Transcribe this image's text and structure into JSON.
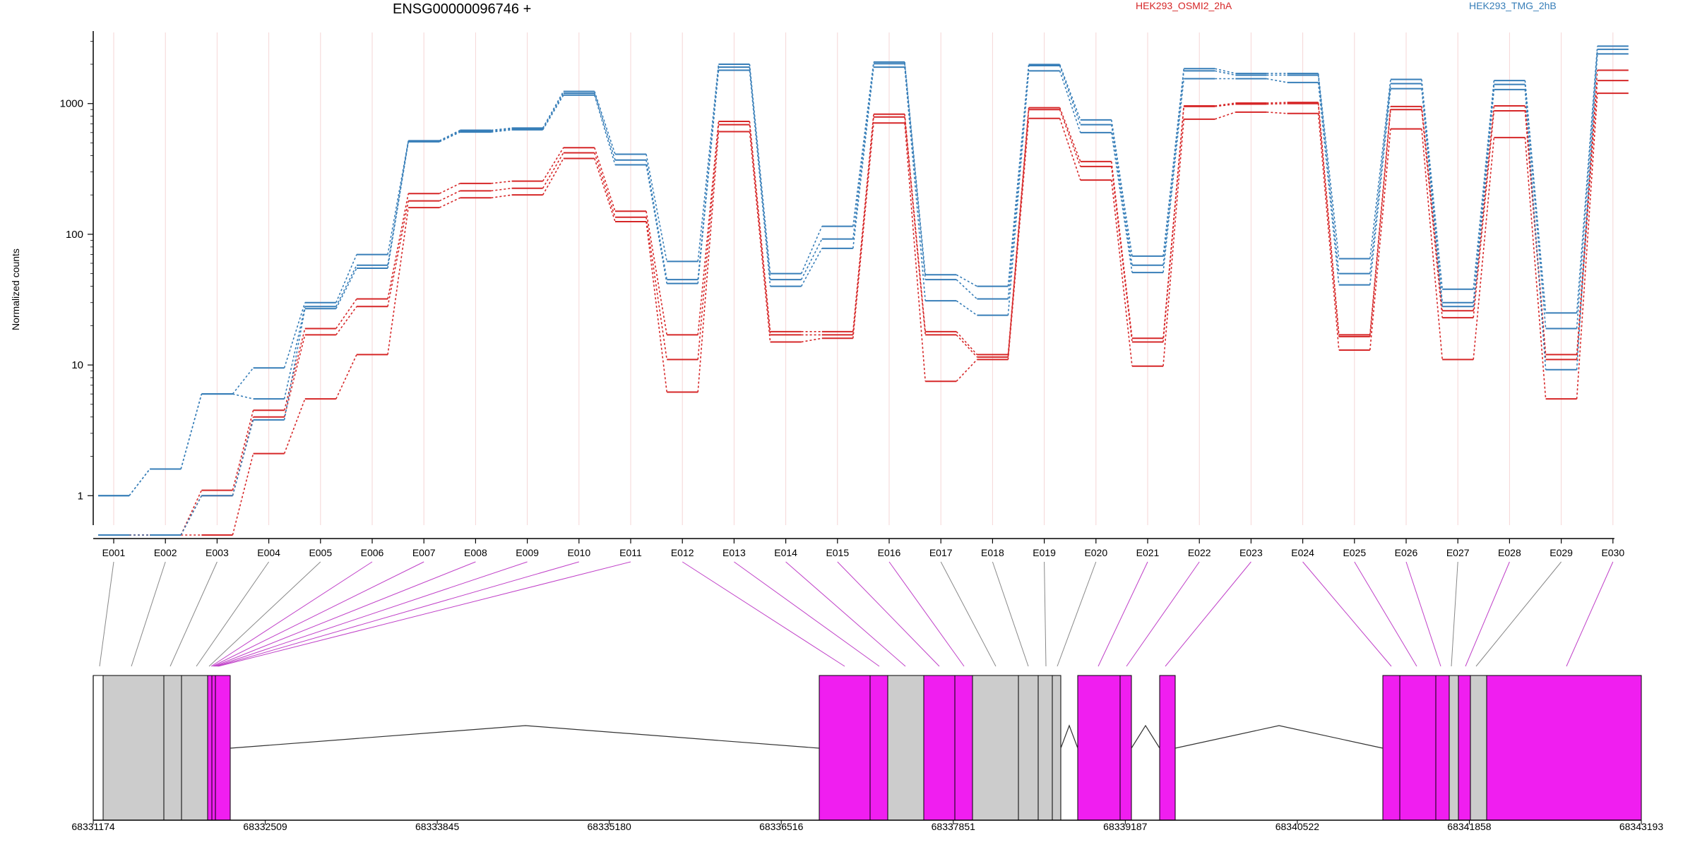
{
  "chart_data": {
    "type": "line",
    "title": "ENSG00000096746 +",
    "ylabel": "Normalized counts",
    "xlabel": "",
    "yscale": "log",
    "ylim": [
      0.5,
      3500
    ],
    "yticks": [
      "1",
      "10",
      "100",
      "1000"
    ],
    "categories": [
      "E001",
      "E002",
      "E003",
      "E004",
      "E005",
      "E006",
      "E007",
      "E008",
      "E009",
      "E010",
      "E011",
      "E012",
      "E013",
      "E014",
      "E015",
      "E016",
      "E017",
      "E018",
      "E019",
      "E020",
      "E021",
      "E022",
      "E023",
      "E024",
      "E025",
      "E026",
      "E027",
      "E028",
      "E029",
      "E030"
    ],
    "series": [
      {
        "name": "HEK293_OSMI2_2hA",
        "color": "#d62728",
        "values": [
          0.5,
          0.5,
          1.1,
          4.5,
          19,
          32,
          205,
          245,
          255,
          460,
          150,
          17,
          730,
          18,
          18,
          830,
          18,
          12,
          930,
          360,
          16,
          960,
          1010,
          1020,
          17,
          950,
          26,
          960,
          12,
          1800
        ]
      },
      {
        "name": "",
        "color": "#d62728",
        "values": [
          0.5,
          0.5,
          1.0,
          4.0,
          17,
          28,
          180,
          215,
          225,
          420,
          135,
          11,
          690,
          17,
          17,
          790,
          17,
          11.5,
          900,
          330,
          15,
          950,
          990,
          1000,
          16.5,
          900,
          23,
          880,
          11,
          1500
        ]
      },
      {
        "name": "",
        "color": "#d62728",
        "values": [
          0.5,
          0.5,
          0.5,
          2.1,
          5.5,
          12,
          160,
          190,
          200,
          380,
          125,
          6.2,
          610,
          15,
          16,
          710,
          7.5,
          11,
          770,
          260,
          9.8,
          760,
          860,
          840,
          13,
          640,
          11,
          550,
          5.5,
          1200
        ]
      },
      {
        "name": "HEK293_TMG_2hB",
        "color": "#377eb8",
        "values": [
          1,
          1.6,
          6,
          9.5,
          30,
          70,
          520,
          625,
          650,
          1240,
          410,
          62,
          2000,
          50,
          115,
          2080,
          49,
          40,
          1990,
          750,
          68,
          1850,
          1700,
          1700,
          65,
          1530,
          38,
          1500,
          25,
          2750
        ]
      },
      {
        "name": "",
        "color": "#377eb8",
        "values": [
          1,
          1.6,
          6,
          5.5,
          28,
          58,
          515,
          615,
          640,
          1200,
          370,
          45,
          1900,
          45,
          92,
          2020,
          45,
          32,
          1950,
          690,
          58,
          1780,
          1650,
          1650,
          50,
          1420,
          30,
          1400,
          19,
          2600
        ]
      },
      {
        "name": "",
        "color": "#377eb8",
        "values": [
          0.5,
          0.5,
          1,
          3.8,
          27,
          55,
          510,
          605,
          630,
          1160,
          340,
          42,
          1800,
          40,
          78,
          1900,
          31,
          24,
          1780,
          600,
          51,
          1550,
          1550,
          1450,
          41,
          1300,
          28,
          1280,
          9.2,
          2400
        ]
      }
    ],
    "gene_model": {
      "coordinate_ticks": [
        "68331174",
        "68332509",
        "68333845",
        "68335180",
        "68336516",
        "68337851",
        "68339187",
        "68340522",
        "68341858",
        "68343193"
      ]
    },
    "colors": {
      "red": "#d62728",
      "blue": "#377eb8",
      "exon_highlight": "#f01ef0",
      "exon_normal": "#cccccc"
    }
  }
}
